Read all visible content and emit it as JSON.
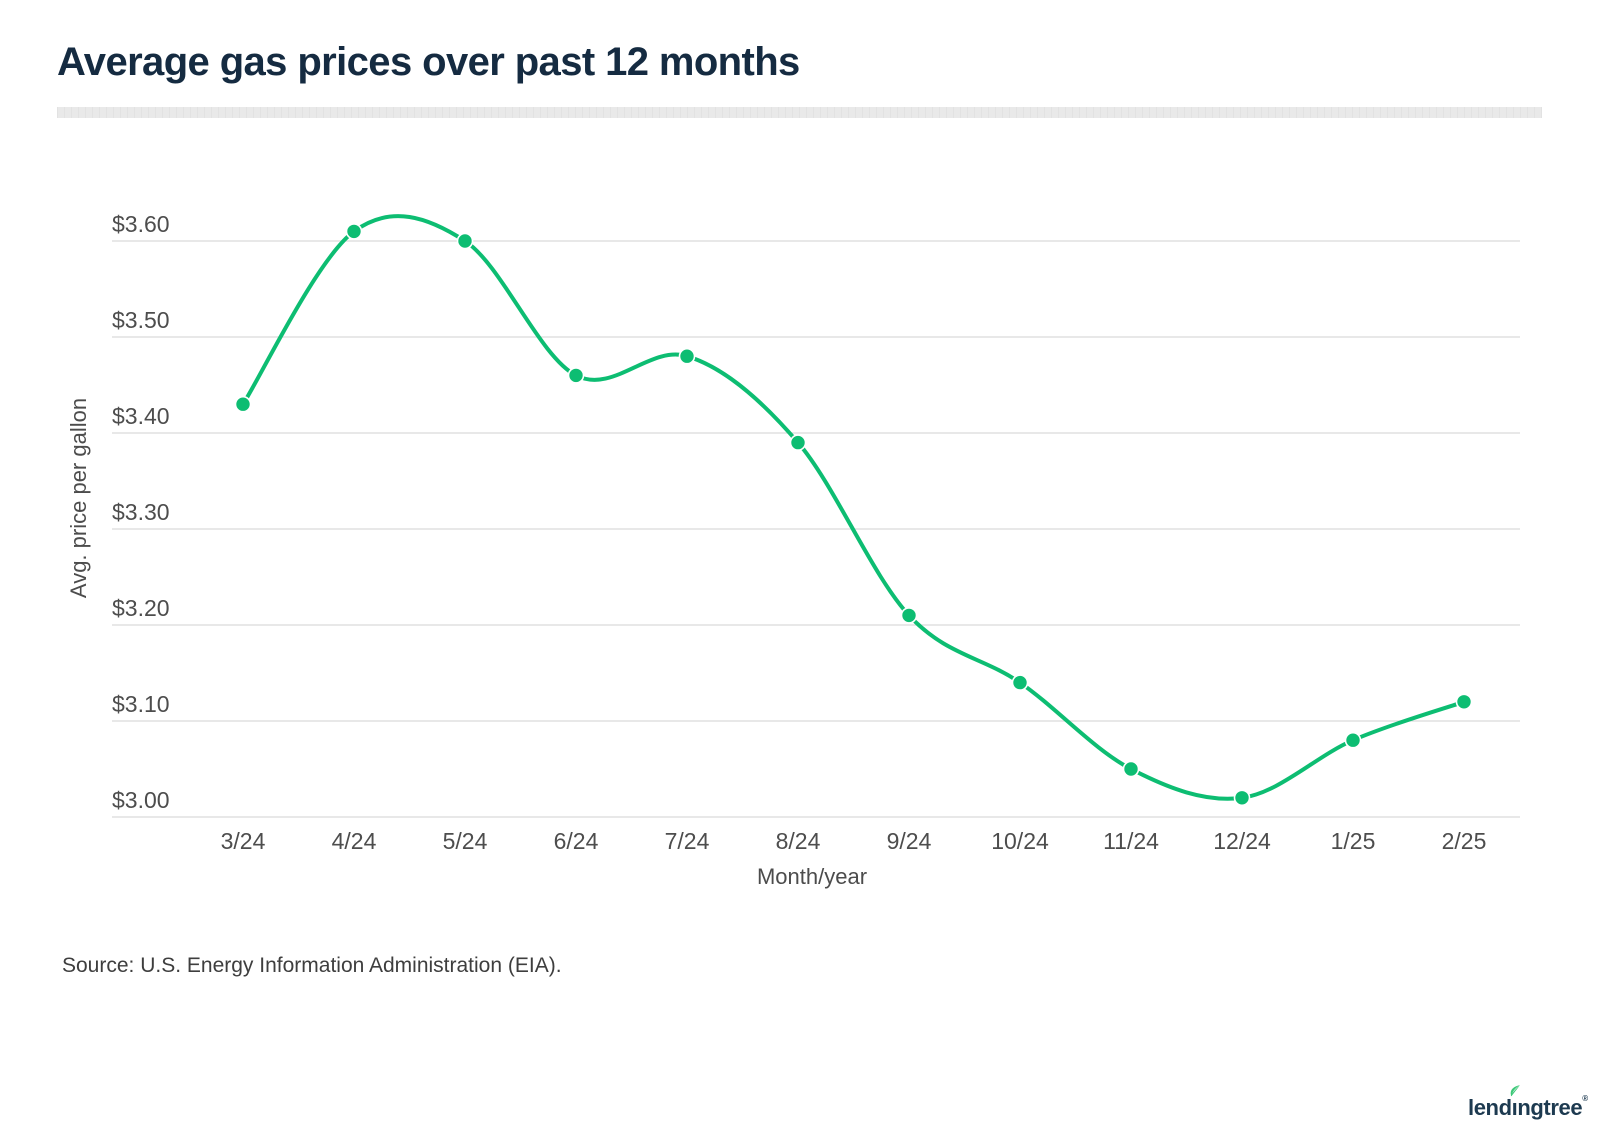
{
  "header": {
    "title": "Average gas prices over past 12 months"
  },
  "footer": {
    "source": "Source: U.S. Energy Information Administration (EIA).",
    "logo": {
      "name": "lendingtree",
      "pre": "lend",
      "i": "ı",
      "post": "ngtree",
      "mark": "®"
    }
  },
  "colors": {
    "line": "#0dbd72",
    "marker_fill": "#0dbd72",
    "marker_ring": "#ffffff",
    "grid": "#d9d9d9",
    "tick_text": "#4d4d4d",
    "axis_title_text": "#4c4c4c",
    "title_text": "#152b41",
    "source_text": "#3e3e3e",
    "divider": "#e9e9e9",
    "logo_navy": "#1d3a50",
    "leaf_green": "#3cc878"
  },
  "chart_data": {
    "type": "line",
    "title": "Average gas prices over past 12 months",
    "xlabel": "Month/year",
    "ylabel": "Avg. price per gallon",
    "categories": [
      "3/24",
      "4/24",
      "5/24",
      "6/24",
      "7/24",
      "8/24",
      "9/24",
      "10/24",
      "11/24",
      "12/24",
      "1/25",
      "2/25"
    ],
    "values": [
      3.43,
      3.61,
      3.6,
      3.46,
      3.48,
      3.39,
      3.21,
      3.14,
      3.05,
      3.02,
      3.08,
      3.12
    ],
    "series_name": "Avg. price per gallon",
    "y_tick_values": [
      3.0,
      3.1,
      3.2,
      3.3,
      3.4,
      3.5,
      3.6
    ],
    "y_tick_labels": [
      "$3.00",
      "$3.10",
      "$3.20",
      "$3.30",
      "$3.40",
      "$3.50",
      "$3.60"
    ],
    "ylim": [
      2.94,
      3.66
    ],
    "grid": true,
    "legend": false,
    "marker": "circle"
  }
}
